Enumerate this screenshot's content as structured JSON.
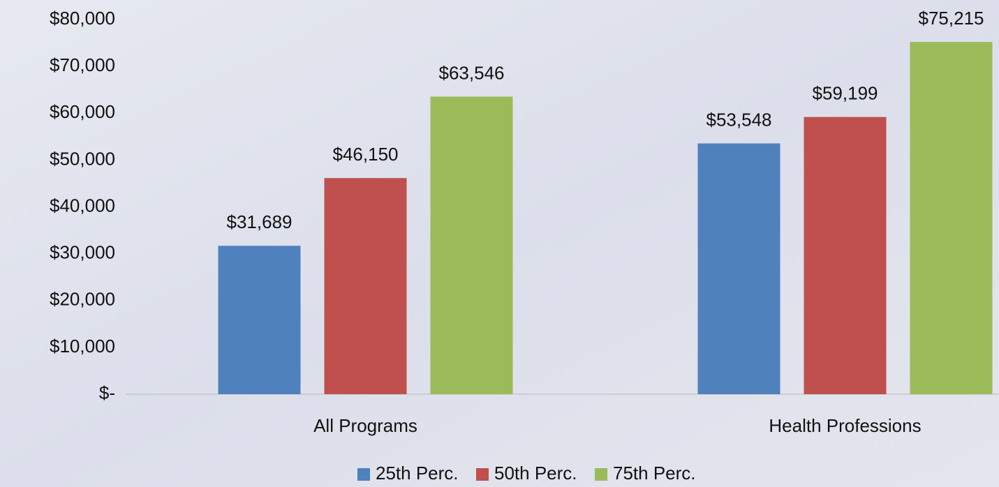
{
  "chart_data": {
    "type": "bar",
    "categories": [
      "All Programs",
      "Health Professions"
    ],
    "series": [
      {
        "name": "25th Perc.",
        "color": "#4f81bd",
        "values": [
          31689,
          53548
        ],
        "value_labels": [
          "$31,689",
          "$53,548"
        ]
      },
      {
        "name": "50th Perc.",
        "color": "#c0504d",
        "values": [
          46150,
          59199
        ],
        "value_labels": [
          "$46,150",
          "$59,199"
        ]
      },
      {
        "name": "75th Perc.",
        "color": "#9bbb59",
        "values": [
          63546,
          75215
        ],
        "value_labels": [
          "$63,546",
          "$75,215"
        ]
      }
    ],
    "ylim": [
      0,
      80000
    ],
    "yticks": [
      {
        "value": 0,
        "label": "$-"
      },
      {
        "value": 10000,
        "label": "$10,000"
      },
      {
        "value": 20000,
        "label": "$20,000"
      },
      {
        "value": 30000,
        "label": "$30,000"
      },
      {
        "value": 40000,
        "label": "$40,000"
      },
      {
        "value": 50000,
        "label": "$50,000"
      },
      {
        "value": 60000,
        "label": "$60,000"
      },
      {
        "value": 70000,
        "label": "$70,000"
      },
      {
        "value": 80000,
        "label": "$80,000"
      }
    ],
    "grid": false,
    "legend": "bottom"
  }
}
